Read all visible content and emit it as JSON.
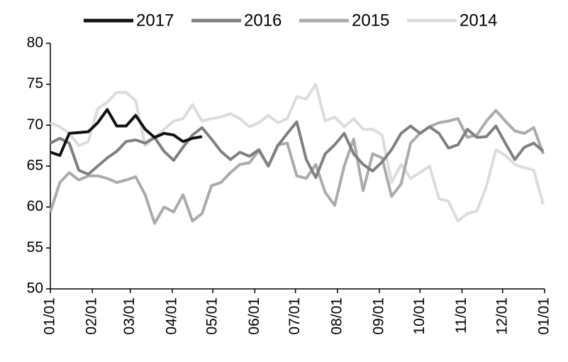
{
  "chart_data": {
    "type": "line",
    "x": [
      0,
      7,
      14,
      21,
      28,
      35,
      42,
      49,
      56,
      63,
      70,
      77,
      84,
      91,
      98,
      105,
      112,
      119,
      126,
      133,
      140,
      147,
      154,
      161,
      168,
      175,
      182,
      189,
      196,
      203,
      210,
      217,
      224,
      231,
      238,
      245,
      252,
      259,
      266,
      273,
      280,
      287,
      294,
      301,
      308,
      315,
      322,
      329,
      336,
      343,
      350,
      357,
      364
    ],
    "xlim": [
      0,
      365
    ],
    "xticks": [
      {
        "value": 0,
        "label": "01/01"
      },
      {
        "value": 31,
        "label": "02/01"
      },
      {
        "value": 59,
        "label": "03/01"
      },
      {
        "value": 90,
        "label": "04/01"
      },
      {
        "value": 120,
        "label": "05/01"
      },
      {
        "value": 151,
        "label": "06/01"
      },
      {
        "value": 181,
        "label": "07/01"
      },
      {
        "value": 212,
        "label": "08/01"
      },
      {
        "value": 243,
        "label": "09/01"
      },
      {
        "value": 273,
        "label": "10/01"
      },
      {
        "value": 304,
        "label": "11/01"
      },
      {
        "value": 334,
        "label": "12/01"
      },
      {
        "value": 365,
        "label": "01/01"
      }
    ],
    "ylim": [
      50,
      80
    ],
    "yticks": [
      50,
      55,
      60,
      65,
      70,
      75,
      80
    ],
    "legend": "top",
    "series": [
      {
        "name": "2017",
        "color": "#111111",
        "values": [
          66.7,
          66.3,
          69,
          69.1,
          69.2,
          70.3,
          71.9,
          69.9,
          69.9,
          71.2,
          69.5,
          68.5,
          69,
          68.8,
          68,
          68.4,
          68.6,
          null,
          null,
          null,
          null,
          null,
          null,
          null,
          null,
          null,
          null,
          null,
          null,
          null,
          null,
          null,
          null,
          null,
          null,
          null,
          null,
          null,
          null,
          null,
          null,
          null,
          null,
          null,
          null,
          null,
          null,
          null,
          null,
          null,
          null,
          null,
          null
        ]
      },
      {
        "name": "2016",
        "color": "#808080",
        "values": [
          67.8,
          68.4,
          67.8,
          64.5,
          64,
          65,
          66,
          66.8,
          68,
          68.2,
          67.8,
          68.5,
          66.8,
          65.7,
          67.3,
          68.8,
          69.7,
          68.3,
          66.8,
          65.8,
          66.7,
          66.2,
          67,
          65,
          67.5,
          69,
          70.4,
          65.8,
          63.6,
          66.5,
          67.6,
          69,
          66.5,
          65.2,
          64.4,
          65.5,
          67,
          69,
          69.9,
          69,
          69.8,
          69,
          67.2,
          67.6,
          69.5,
          68.5,
          68.6,
          69.9,
          67.8,
          65.8,
          67.3,
          67.8,
          66.8
        ]
      },
      {
        "name": "2015",
        "color": "#ababab",
        "values": [
          59.4,
          63,
          64.2,
          63.3,
          63.8,
          63.8,
          63.5,
          63,
          63.3,
          63.7,
          61.5,
          58,
          60,
          59.4,
          61.5,
          58.3,
          59.2,
          62.6,
          63,
          64.2,
          65.2,
          65.4,
          66.9,
          65,
          67.6,
          67.8,
          63.8,
          63.5,
          65.2,
          61.8,
          60.2,
          65,
          68.3,
          62,
          66.5,
          66,
          61.3,
          62.8,
          67.8,
          69,
          69.8,
          70.3,
          70.5,
          70.8,
          68.5,
          68.8,
          70.5,
          71.8,
          70.5,
          69.3,
          69,
          69.7,
          66.5
        ]
      },
      {
        "name": "2014",
        "color": "#dcdcdc",
        "values": [
          70.3,
          69.8,
          69,
          67.5,
          68,
          72,
          72.8,
          74,
          74,
          73,
          67.5,
          68.5,
          69.5,
          70.5,
          70.8,
          72.5,
          70.5,
          70.8,
          71,
          71.4,
          70.8,
          69.8,
          70.3,
          71.2,
          70.3,
          70.8,
          73.5,
          73.2,
          75,
          70.5,
          71,
          69.8,
          70.8,
          69.5,
          69.5,
          68.8,
          63,
          65.2,
          63.5,
          64.2,
          65,
          61,
          60.7,
          58.3,
          59.2,
          59.5,
          62.5,
          67,
          66.3,
          65.2,
          64.8,
          64.5,
          60.3
        ]
      }
    ]
  }
}
